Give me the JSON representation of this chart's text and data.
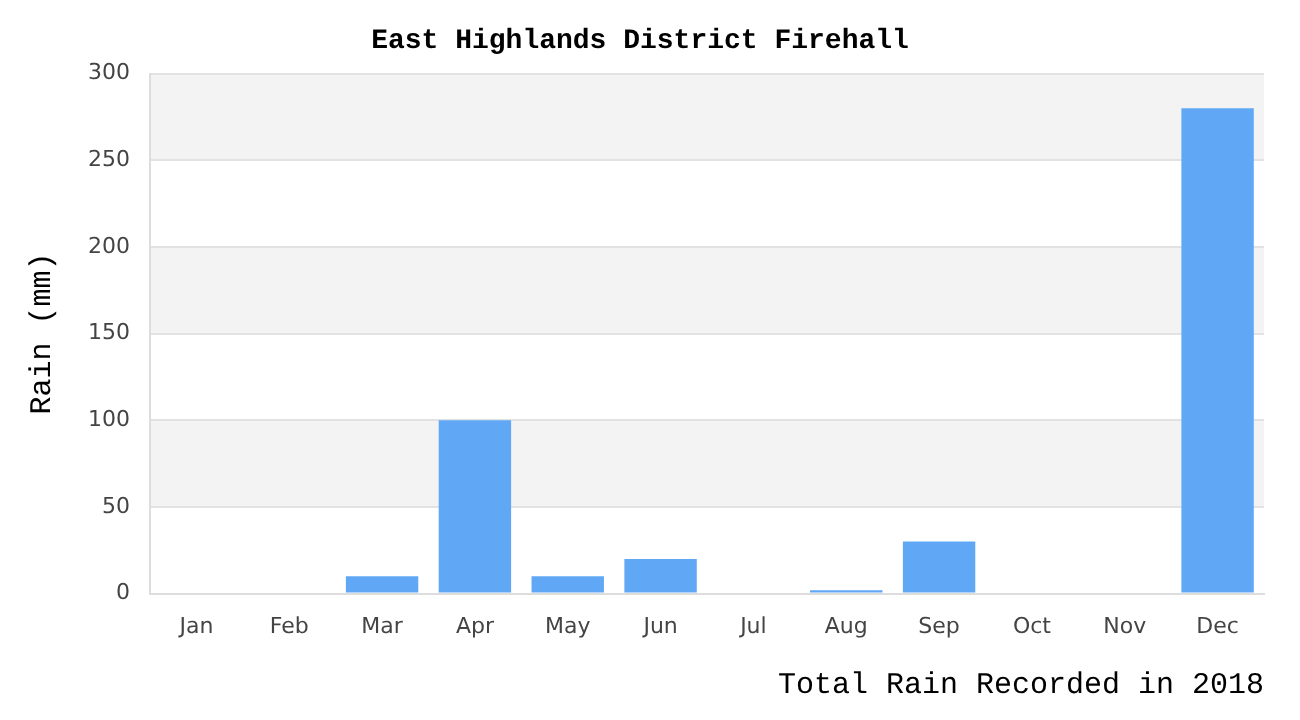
{
  "chart_data": {
    "type": "bar",
    "title": "East Highlands District Firehall",
    "xlabel": "Total Rain Recorded in 2018",
    "ylabel": "Rain (mm)",
    "categories": [
      "Jan",
      "Feb",
      "Mar",
      "Apr",
      "May",
      "Jun",
      "Jul",
      "Aug",
      "Sep",
      "Oct",
      "Nov",
      "Dec"
    ],
    "values": [
      0,
      0,
      10,
      100,
      10,
      20,
      0,
      2,
      30,
      0,
      0,
      280
    ],
    "color": "#60a8f6",
    "ylim": [
      0,
      300
    ],
    "yticks": [
      0,
      50,
      100,
      150,
      200,
      250,
      300
    ],
    "grid": true,
    "legend": false
  }
}
